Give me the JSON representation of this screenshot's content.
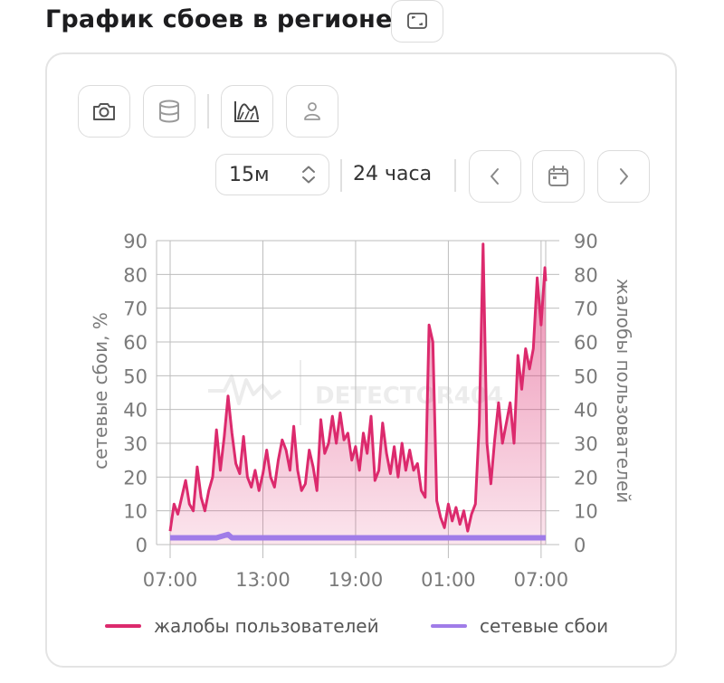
{
  "page": {
    "title": "График сбоев в регионе"
  },
  "toolbar": {
    "interval": "15м",
    "period": "24 часа"
  },
  "colors": {
    "complaints": "#dc2a6d",
    "failures": "#a07ce8",
    "grid": "#bdbdbd",
    "axis_text": "#7a7a7a"
  },
  "chart_data": {
    "type": "area",
    "x_ticks": [
      "07:00",
      "13:00",
      "19:00",
      "01:00",
      "07:00"
    ],
    "x": [
      "07:00",
      "08:00",
      "09:00",
      "10:00",
      "11:00",
      "12:00",
      "13:00",
      "14:00",
      "15:00",
      "16:00",
      "17:00",
      "18:00",
      "19:00",
      "20:00",
      "21:00",
      "22:00",
      "23:00",
      "00:00",
      "01:00",
      "02:00",
      "03:00",
      "04:00",
      "05:00",
      "06:00",
      "07:00",
      "08:00",
      "08:45"
    ],
    "y_left_label": "сетевые сбои, %",
    "y_right_label": "жалобы пользователей",
    "ylim": [
      0,
      90
    ],
    "y_ticks": [
      0,
      10,
      20,
      30,
      40,
      50,
      60,
      70,
      80,
      90
    ],
    "grid": true,
    "legend_position": "bottom",
    "watermark": "DETECTOR404",
    "series": [
      {
        "name": "жалобы пользователей",
        "axis": "right",
        "values": [
          [
            0,
            4
          ],
          [
            0.25,
            12
          ],
          [
            0.5,
            9
          ],
          [
            0.75,
            14
          ],
          [
            1,
            19
          ],
          [
            1.25,
            12
          ],
          [
            1.5,
            10
          ],
          [
            1.75,
            23
          ],
          [
            2,
            14
          ],
          [
            2.25,
            10
          ],
          [
            2.5,
            16
          ],
          [
            2.75,
            20
          ],
          [
            3,
            34
          ],
          [
            3.25,
            22
          ],
          [
            3.5,
            32
          ],
          [
            3.75,
            44
          ],
          [
            4,
            33
          ],
          [
            4.25,
            24
          ],
          [
            4.5,
            21
          ],
          [
            4.75,
            32
          ],
          [
            5,
            20
          ],
          [
            5.25,
            17
          ],
          [
            5.5,
            22
          ],
          [
            5.75,
            16
          ],
          [
            6,
            21
          ],
          [
            6.25,
            28
          ],
          [
            6.5,
            20
          ],
          [
            6.75,
            17
          ],
          [
            7,
            25
          ],
          [
            7.25,
            31
          ],
          [
            7.5,
            28
          ],
          [
            7.75,
            22
          ],
          [
            8,
            35
          ],
          [
            8.25,
            22
          ],
          [
            8.5,
            16
          ],
          [
            8.75,
            18
          ],
          [
            9,
            28
          ],
          [
            9.25,
            23
          ],
          [
            9.5,
            16
          ],
          [
            9.75,
            37
          ],
          [
            10,
            27
          ],
          [
            10.25,
            30
          ],
          [
            10.5,
            38
          ],
          [
            10.75,
            30
          ],
          [
            11,
            39
          ],
          [
            11.25,
            31
          ],
          [
            11.5,
            33
          ],
          [
            11.75,
            25
          ],
          [
            12,
            29
          ],
          [
            12.25,
            22
          ],
          [
            12.5,
            33
          ],
          [
            12.75,
            27
          ],
          [
            13,
            38
          ],
          [
            13.25,
            19
          ],
          [
            13.5,
            22
          ],
          [
            13.75,
            36
          ],
          [
            14,
            27
          ],
          [
            14.25,
            21
          ],
          [
            14.5,
            29
          ],
          [
            14.75,
            20
          ],
          [
            15,
            30
          ],
          [
            15.25,
            22
          ],
          [
            15.5,
            28
          ],
          [
            15.75,
            22
          ],
          [
            16,
            24
          ],
          [
            16.25,
            16
          ],
          [
            16.5,
            14
          ],
          [
            16.75,
            65
          ],
          [
            17,
            60
          ],
          [
            17.25,
            13
          ],
          [
            17.5,
            8
          ],
          [
            17.75,
            5
          ],
          [
            18,
            12
          ],
          [
            18.25,
            7
          ],
          [
            18.5,
            11
          ],
          [
            18.75,
            6
          ],
          [
            19,
            10
          ],
          [
            19.25,
            4
          ],
          [
            19.5,
            9
          ],
          [
            19.75,
            12
          ],
          [
            20,
            36
          ],
          [
            20.25,
            89
          ],
          [
            20.5,
            30
          ],
          [
            20.75,
            18
          ],
          [
            21,
            31
          ],
          [
            21.25,
            42
          ],
          [
            21.5,
            30
          ],
          [
            21.75,
            36
          ],
          [
            22,
            42
          ],
          [
            22.25,
            30
          ],
          [
            22.5,
            56
          ],
          [
            22.75,
            46
          ],
          [
            23,
            58
          ],
          [
            23.25,
            52
          ],
          [
            23.5,
            58
          ],
          [
            23.75,
            79
          ],
          [
            24,
            65
          ],
          [
            24.25,
            82
          ],
          [
            24.3,
            78
          ]
        ]
      },
      {
        "name": "сетевые сбои",
        "axis": "left",
        "values": [
          [
            0,
            2
          ],
          [
            1,
            2
          ],
          [
            2,
            2
          ],
          [
            3,
            2
          ],
          [
            3.75,
            3
          ],
          [
            4,
            2
          ],
          [
            5,
            2
          ],
          [
            6,
            2
          ],
          [
            7,
            2
          ],
          [
            8,
            2
          ],
          [
            9,
            2
          ],
          [
            10,
            2
          ],
          [
            11,
            2
          ],
          [
            12,
            2
          ],
          [
            13,
            2
          ],
          [
            14,
            2
          ],
          [
            15,
            2
          ],
          [
            16,
            2
          ],
          [
            17,
            2
          ],
          [
            18,
            2
          ],
          [
            19,
            2
          ],
          [
            20,
            2
          ],
          [
            21,
            2
          ],
          [
            22,
            2
          ],
          [
            23,
            2
          ],
          [
            24,
            2
          ],
          [
            24.3,
            2
          ]
        ]
      }
    ]
  }
}
